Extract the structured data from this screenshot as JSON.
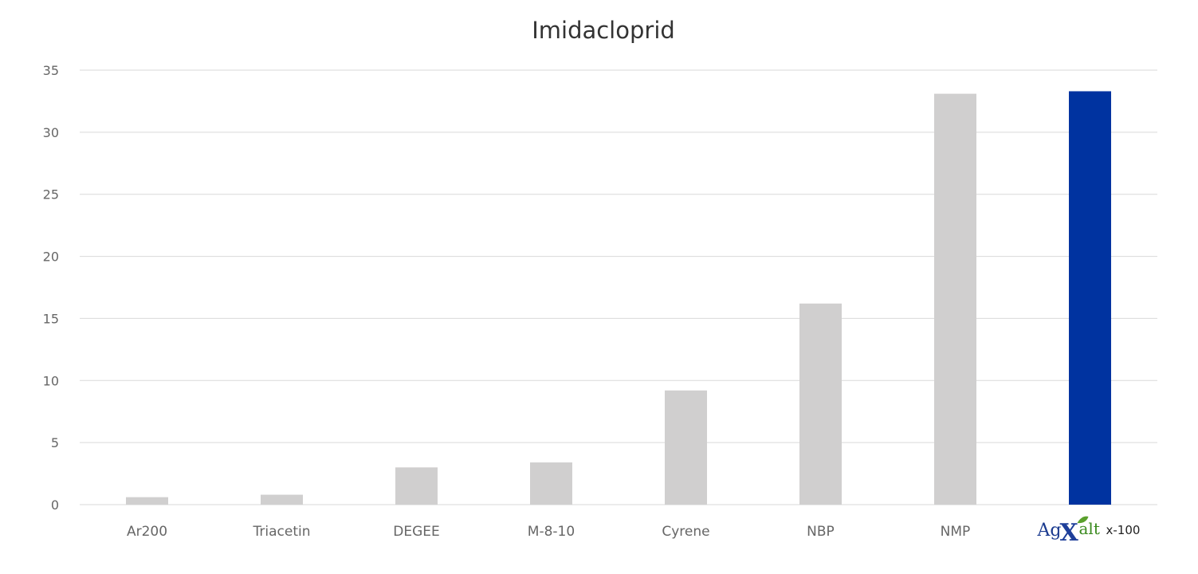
{
  "chart_data": {
    "type": "bar",
    "title": "Imidacloprid",
    "xlabel": "",
    "ylabel": "",
    "categories": [
      "Ar200",
      "Triacetin",
      "DEGEE",
      "M-8-10",
      "Cyrene",
      "NBP",
      "NMP",
      "AgXalt x-100"
    ],
    "values": [
      0.6,
      0.8,
      3.0,
      3.4,
      9.2,
      16.2,
      33.1,
      33.3
    ],
    "ylim": [
      0,
      35
    ],
    "yticks": [
      0,
      5,
      10,
      15,
      20,
      25,
      30,
      35
    ],
    "grid": true,
    "legend": "none",
    "colors": {
      "default_bar": "#d0cfcf",
      "highlight_bar": "#0033a0",
      "gridline": "#d9d9d9"
    },
    "highlight_index": 7,
    "last_category_logo": {
      "ag": "Ag",
      "x": "X",
      "alt": "alt",
      "suffix": "x-100",
      "colors": {
        "ag": "#1a3a8f",
        "x": "#1e3f9a",
        "leaf": "#5aa02c",
        "alt": "#3a8a1e"
      }
    }
  }
}
